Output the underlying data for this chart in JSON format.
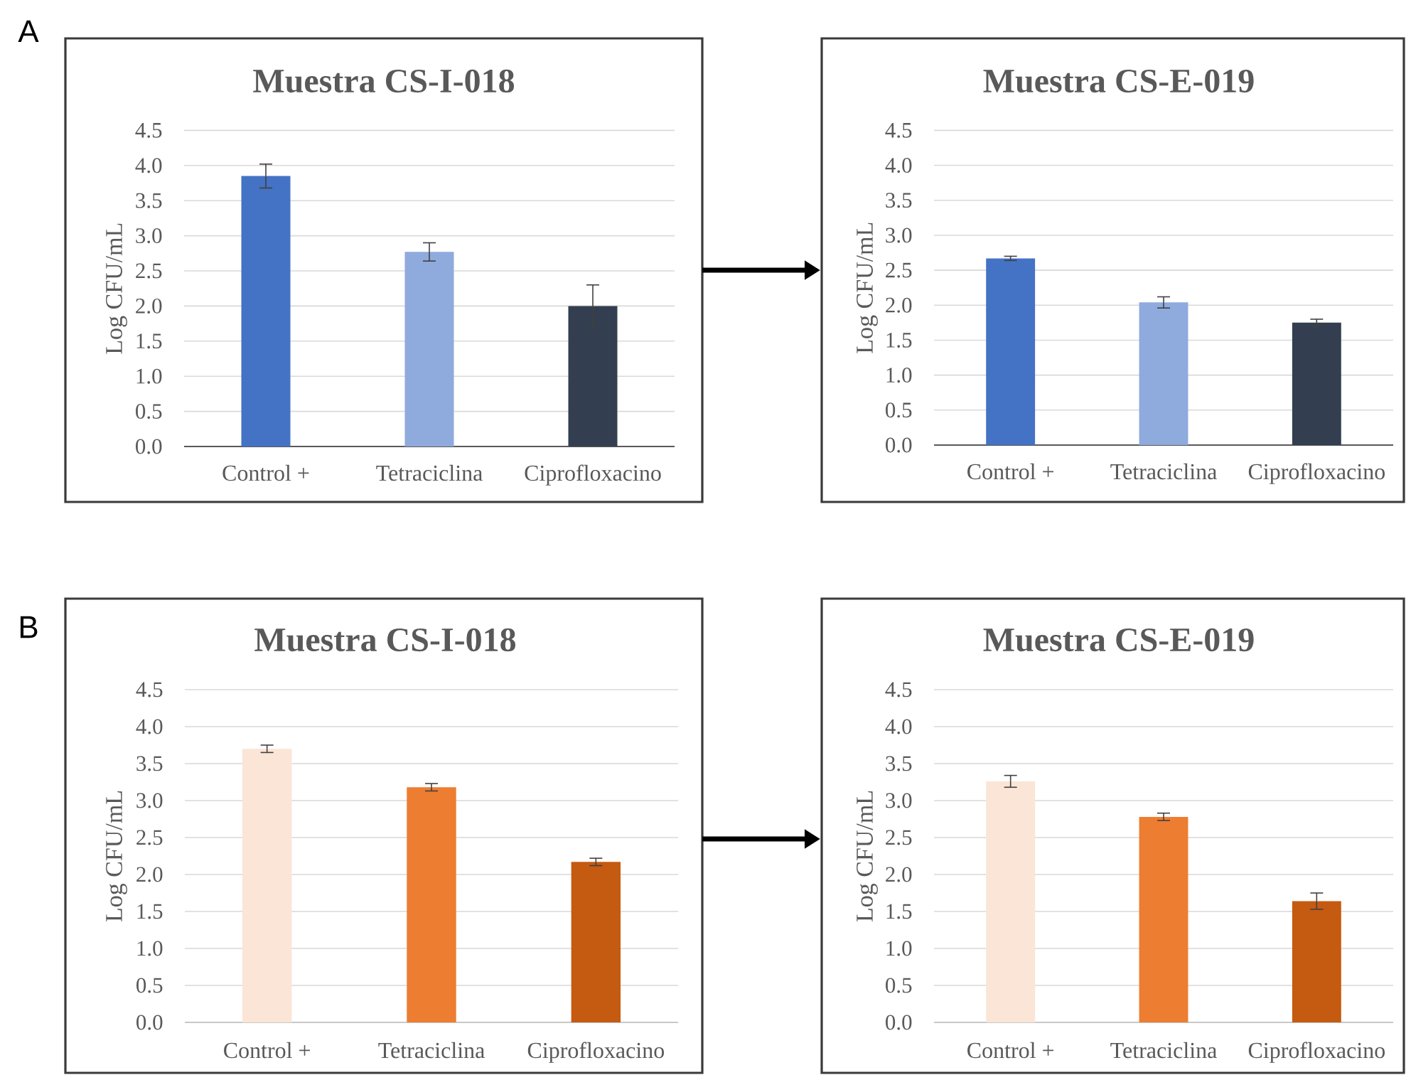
{
  "chart_data": [
    {
      "type": "bar",
      "title": "Muestra CS-I-018",
      "ylabel": "Log CFU/mL",
      "categories": [
        "Control +",
        "Tetraciclina",
        "Ciprofloxacino"
      ],
      "values": [
        3.85,
        2.77,
        2.0
      ],
      "errors": [
        0.17,
        0.13,
        0.3
      ],
      "colors": [
        "#4472c4",
        "#8faadc",
        "#333f50"
      ],
      "ylim": [
        0,
        4.5
      ],
      "yticks": [
        {
          "value": 0,
          "label": "0.0"
        },
        0.5,
        {
          "value": 1,
          "label": "1.0"
        },
        1.5,
        {
          "value": 2,
          "label": "2.0"
        },
        2.5,
        {
          "value": 3,
          "label": "3.0"
        },
        3.5,
        {
          "value": 4,
          "label": "4.0"
        },
        4.5
      ],
      "grid": "y",
      "annotations": [
        "A"
      ]
    },
    {
      "type": "bar",
      "title": "Muestra CS-E-019",
      "ylabel": "Log CFU/mL",
      "categories": [
        "Control +",
        "Tetraciclina",
        "Ciprofloxacino"
      ],
      "values": [
        2.67,
        2.04,
        1.75
      ],
      "errors": [
        0.03,
        0.08,
        0.05
      ],
      "colors": [
        "#4472c4",
        "#8faadc",
        "#333f50"
      ],
      "ylim": [
        0,
        4.5
      ],
      "yticks": [
        {
          "value": 0,
          "label": "0.0"
        },
        0.5,
        {
          "value": 1,
          "label": "1.0"
        },
        1.5,
        {
          "value": 2,
          "label": "2.0"
        },
        2.5,
        {
          "value": 3,
          "label": "3.0"
        },
        3.5,
        {
          "value": 4,
          "label": "4.0"
        },
        4.5
      ],
      "grid": "y"
    },
    {
      "type": "bar",
      "title": "Muestra CS-I-018",
      "ylabel": "Log CFU/mL",
      "categories": [
        "Control +",
        "Tetraciclina",
        "Ciprofloxacino"
      ],
      "values": [
        3.7,
        3.18,
        2.17
      ],
      "errors": [
        0.05,
        0.05,
        0.05
      ],
      "colors": [
        "#fbe5d6",
        "#ed7d31",
        "#c55a11"
      ],
      "ylim": [
        0,
        4.5
      ],
      "yticks": [
        {
          "value": 0,
          "label": "0.0"
        },
        0.5,
        {
          "value": 1,
          "label": "1.0"
        },
        1.5,
        {
          "value": 2,
          "label": "2.0"
        },
        2.5,
        {
          "value": 3,
          "label": "3.0"
        },
        3.5,
        {
          "value": 4,
          "label": "4.0"
        },
        4.5
      ],
      "grid": "y",
      "annotations": [
        "B"
      ]
    },
    {
      "type": "bar",
      "title": "Muestra CS-E-019",
      "ylabel": "Log CFU/mL",
      "categories": [
        "Control +",
        "Tetraciclina",
        "Ciprofloxacino"
      ],
      "values": [
        3.26,
        2.78,
        1.64
      ],
      "errors": [
        0.08,
        0.05,
        0.11
      ],
      "colors": [
        "#fbe5d6",
        "#ed7d31",
        "#c55a11"
      ],
      "ylim": [
        0,
        4.5
      ],
      "yticks": [
        {
          "value": 0,
          "label": "0.0"
        },
        0.5,
        {
          "value": 1,
          "label": "1.0"
        },
        1.5,
        {
          "value": 2,
          "label": "2.0"
        },
        2.5,
        {
          "value": 3,
          "label": "3.0"
        },
        3.5,
        {
          "value": 4,
          "label": "4.0"
        },
        4.5
      ],
      "grid": "y"
    }
  ]
}
